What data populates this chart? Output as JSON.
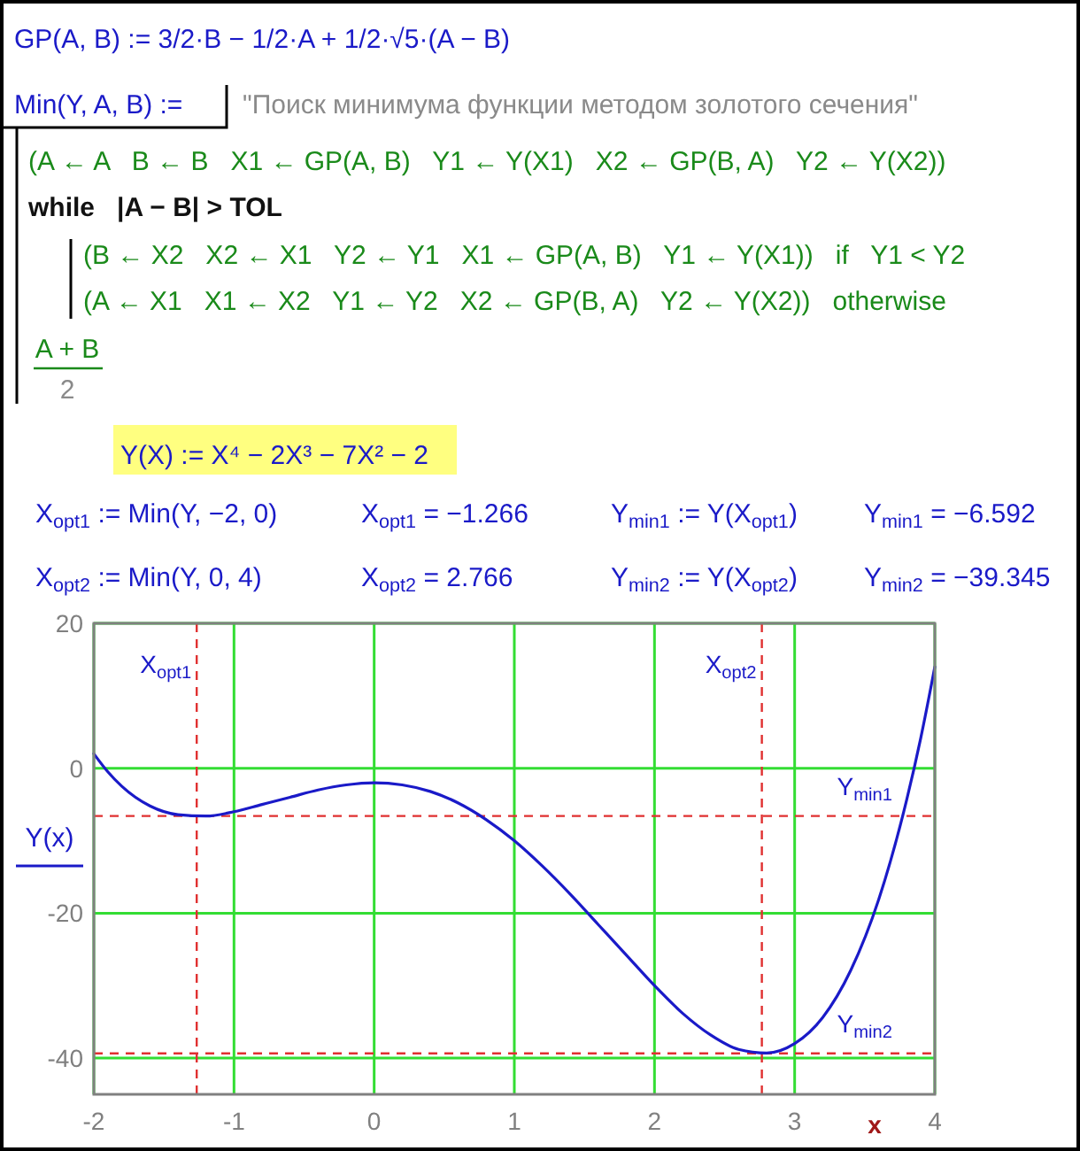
{
  "chart_data": {
    "type": "line",
    "annotations": [
      "GP(A, B) := 3/2·B − 1/2·A + 1/2·√5·(A − B)",
      "Min(Y, A, B) :=",
      "\"Поиск минимума функции методом золотого сечения\"",
      "(A ← A   B ← B   X1 ← GP(A, B)   Y1 ← Y(X1)   X2 ← GP(B, A)   Y2 ← Y(X2))",
      "while   |A − B| > TOL",
      "(B ← X2   X2 ← X1   Y2 ← Y1   X1 ← GP(A, B)   Y1 ← Y(X1))   if   Y1 < Y2",
      "(A ← X1   X1 ← X2   Y1 ← Y2   X2 ← GP(B, A)   Y2 ← Y(X2))   otherwise",
      "A + B",
      "2",
      "Y(X) := X⁴ − 2X³ − 7X² − 2",
      "X$_{opt1}$ := Min(Y, −2, 0)",
      "X$_{opt1}$ = −1.266",
      "Y$_{min1}$ := Y(X$_{opt1}$)",
      "Y$_{min1}$ = −6.592",
      "X$_{opt2}$ := Min(Y, 0, 4)",
      "X$_{opt2}$ = 2.766",
      "Y$_{min2}$ := Y(X$_{opt2}$)",
      "Y$_{min2}$ = −39.345"
    ],
    "xlabel": "x",
    "x": [
      -2,
      -1.9,
      -1.8,
      -1.6,
      -1.4,
      -1.2,
      -1,
      -0.8,
      -0.6,
      -0.4,
      -0.2,
      0,
      0.2,
      0.4,
      0.6,
      0.8,
      1,
      1.2,
      1.4,
      1.6,
      1.8,
      2,
      2.2,
      2.4,
      2.6,
      2.8,
      3,
      3.2,
      3.4,
      3.6,
      3.8,
      3.9,
      4
    ],
    "series": [
      {
        "name": "Y(x)",
        "color": "#1a1ac8",
        "values": [
          2,
          -0.5,
          -2.5,
          -5.2,
          -6.4,
          -6.6,
          -6,
          -5,
          -4,
          -3,
          -2.3,
          -2,
          -2.3,
          -3.2,
          -4.8,
          -7.1,
          -10,
          -13.5,
          -17.4,
          -21.6,
          -25.8,
          -30,
          -33.8,
          -36.8,
          -38.8,
          -39.3,
          -38,
          -34.4,
          -27.9,
          -18.1,
          -4.3,
          4.2,
          14
        ]
      }
    ],
    "xlim": [
      -2,
      4
    ],
    "ylim": [
      -45,
      20
    ],
    "xticks": [
      -2,
      -1,
      0,
      1,
      2,
      3,
      4
    ],
    "yticks": [
      -40,
      -20,
      0,
      20
    ],
    "grid": true,
    "legend": "left",
    "line_style": "solid",
    "ref_lines": [
      {
        "axis": "x",
        "value": -1.266,
        "label": "X$_{opt1}$",
        "color": "#e03030",
        "line_style": "dashed"
      },
      {
        "axis": "x",
        "value": 2.766,
        "label": "X$_{opt2}$",
        "color": "#e03030",
        "line_style": "dashed"
      },
      {
        "axis": "y",
        "value": -6.592,
        "label": "Y$_{min1}$",
        "color": "#e03030",
        "line_style": "dashed"
      },
      {
        "axis": "y",
        "value": -39.345,
        "label": "Y$_{min2}$",
        "color": "#e03030",
        "line_style": "dashed"
      }
    ]
  }
}
